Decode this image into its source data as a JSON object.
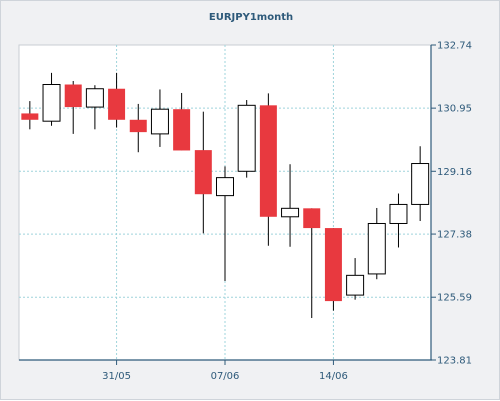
{
  "chart_data": {
    "type": "candlestick",
    "title": "EURJPY1month",
    "xlabel": "",
    "ylabel": "",
    "ylim": [
      123.81,
      132.74
    ],
    "y_ticks": [
      "132.74",
      "130.95",
      "129.16",
      "127.38",
      "125.59",
      "123.81"
    ],
    "x_ticks": [
      {
        "label": "31/05",
        "index": 4.5
      },
      {
        "label": "07/06",
        "index": 9.5
      },
      {
        "label": "14/06",
        "index": 14.5
      }
    ],
    "grid": true,
    "colors": {
      "up": "#ffffff",
      "down": "#e8393f",
      "outline": "#000000",
      "grid": "#9fd4dc",
      "axis": "#2e5a7a"
    },
    "candles": [
      {
        "open": 130.8,
        "high": 131.15,
        "low": 130.35,
        "close": 130.62
      },
      {
        "open": 130.58,
        "high": 131.95,
        "low": 130.45,
        "close": 131.62
      },
      {
        "open": 131.62,
        "high": 131.72,
        "low": 130.22,
        "close": 130.98
      },
      {
        "open": 130.98,
        "high": 131.6,
        "low": 130.35,
        "close": 131.5
      },
      {
        "open": 131.5,
        "high": 131.95,
        "low": 130.4,
        "close": 130.62
      },
      {
        "open": 130.62,
        "high": 131.07,
        "low": 129.7,
        "close": 130.27
      },
      {
        "open": 130.22,
        "high": 131.48,
        "low": 129.85,
        "close": 130.92
      },
      {
        "open": 130.92,
        "high": 131.38,
        "low": 129.75,
        "close": 129.75
      },
      {
        "open": 129.76,
        "high": 130.85,
        "low": 127.4,
        "close": 128.51
      },
      {
        "open": 128.47,
        "high": 129.3,
        "low": 126.05,
        "close": 128.98
      },
      {
        "open": 129.16,
        "high": 131.18,
        "low": 128.98,
        "close": 131.03
      },
      {
        "open": 131.03,
        "high": 131.37,
        "low": 127.05,
        "close": 127.87
      },
      {
        "open": 127.87,
        "high": 129.36,
        "low": 127.02,
        "close": 128.11
      },
      {
        "open": 128.11,
        "high": 128.11,
        "low": 125.0,
        "close": 127.55
      },
      {
        "open": 127.55,
        "high": 127.55,
        "low": 125.21,
        "close": 125.48
      },
      {
        "open": 125.65,
        "high": 126.7,
        "low": 125.52,
        "close": 126.21
      },
      {
        "open": 126.25,
        "high": 128.12,
        "low": 126.1,
        "close": 127.68
      },
      {
        "open": 127.68,
        "high": 128.53,
        "low": 127.0,
        "close": 128.22
      },
      {
        "open": 128.22,
        "high": 129.87,
        "low": 127.75,
        "close": 129.38
      }
    ]
  }
}
